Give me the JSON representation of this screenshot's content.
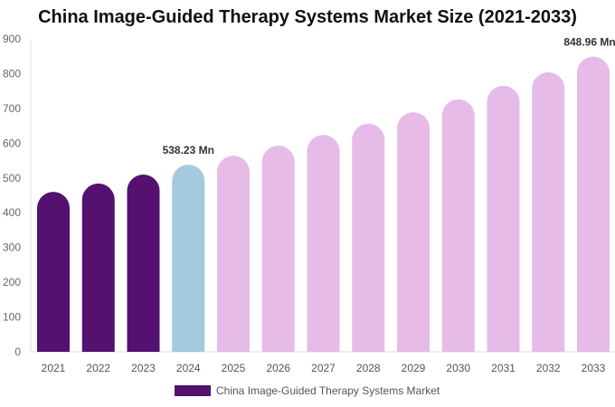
{
  "chart_data": {
    "type": "bar",
    "title": "China Image-Guided Therapy Systems Market Size (2021-2033)",
    "categories": [
      "2021",
      "2022",
      "2023",
      "2024",
      "2025",
      "2026",
      "2027",
      "2028",
      "2029",
      "2030",
      "2031",
      "2032",
      "2033"
    ],
    "series": [
      {
        "name": "China Image-Guided Therapy Systems Market",
        "values": [
          460,
          484,
          510,
          538.23,
          564,
          593,
          624,
          656,
          689,
          726,
          765,
          804,
          848.96
        ]
      }
    ],
    "data_labels": [
      {
        "index": 3,
        "text": "538.23 Mn"
      },
      {
        "index": 12,
        "text": "848.96 Mn"
      }
    ],
    "ylim": [
      0,
      900
    ],
    "yticks": [
      0,
      100,
      200,
      300,
      400,
      500,
      600,
      700,
      800,
      900
    ],
    "grid": false,
    "legend": "bottom",
    "colors": {
      "historical": "#541170",
      "current": "#a4cade",
      "forecast": "#e6bbe8"
    }
  }
}
